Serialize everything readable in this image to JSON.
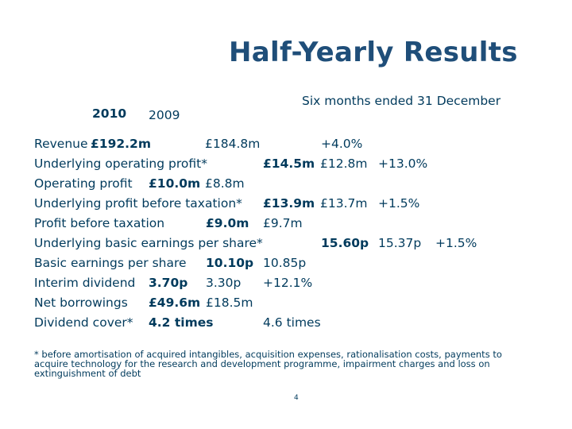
{
  "title": "Half-Yearly Results",
  "period": "Six months ended 31 December",
  "col_2010": "2010",
  "col_2009": "2009",
  "rows": [
    {
      "label": "Revenue",
      "v2010": "£192.2m",
      "v2009": "£184.8m",
      "change": "+4.0%"
    },
    {
      "label": "Underlying operating profit*",
      "v2010": "£14.5m",
      "v2009": "£12.8m",
      "change": "+13.0%"
    },
    {
      "label": "Operating profit",
      "v2010": "£10.0m",
      "v2009": "£8.8m",
      "change": ""
    },
    {
      "label": "Underlying profit before taxation*",
      "v2010": "£13.9m",
      "v2009": "£13.7m",
      "change": "+1.5%"
    },
    {
      "label": "Profit before taxation",
      "v2010": "£9.0m",
      "v2009": "£9.7m",
      "change": ""
    },
    {
      "label": "Underlying basic earnings per share*",
      "v2010": "15.60p",
      "v2009": "15.37p",
      "change": "+1.5%"
    },
    {
      "label": "Basic earnings per share",
      "v2010": "10.10p",
      "v2009": "10.85p",
      "change": ""
    },
    {
      "label": "Interim dividend",
      "v2010": "3.70p",
      "v2009": "3.30p",
      "change": "+12.1%"
    },
    {
      "label": "Net borrowings",
      "v2010": "£49.6m",
      "v2009": "£18.5m",
      "change": ""
    },
    {
      "label": "Dividend cover*",
      "v2010": "4.2 times",
      "v2009": "4.6 times",
      "change": ""
    }
  ],
  "footnote": "* before amortisation of acquired intangibles, acquisition expenses, rationalisation costs, payments to acquire technology for the research and development programme, impairment charges and loss on extinguishment of debt",
  "page_number": "4"
}
